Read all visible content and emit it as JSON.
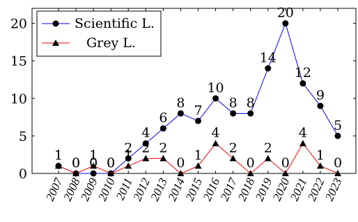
{
  "chart_data": {
    "type": "line",
    "title": "",
    "xlabel": "",
    "ylabel": "",
    "categories": [
      "2007",
      "2008",
      "2009",
      "2010",
      "2011",
      "2012",
      "2013",
      "2014",
      "2015",
      "2016",
      "2017",
      "2018",
      "2019",
      "2020",
      "2021",
      "2022",
      "2023"
    ],
    "ylim": [
      0,
      22
    ],
    "yticks": [
      0,
      5,
      10,
      15,
      20
    ],
    "grid": false,
    "legend_position": "top-left",
    "series": [
      {
        "name": "Scientific L.",
        "color": "#0000ff",
        "marker": "circle",
        "values": [
          1,
          0,
          0,
          0,
          2,
          4,
          6,
          8,
          7,
          10,
          8,
          8,
          14,
          20,
          12,
          9,
          5
        ]
      },
      {
        "name": "Grey L.",
        "color": "#ff0000",
        "marker": "triangle",
        "values": [
          1,
          0,
          1,
          0,
          1,
          2,
          2,
          0,
          1,
          4,
          2,
          0,
          2,
          0,
          4,
          1,
          0
        ]
      }
    ]
  }
}
